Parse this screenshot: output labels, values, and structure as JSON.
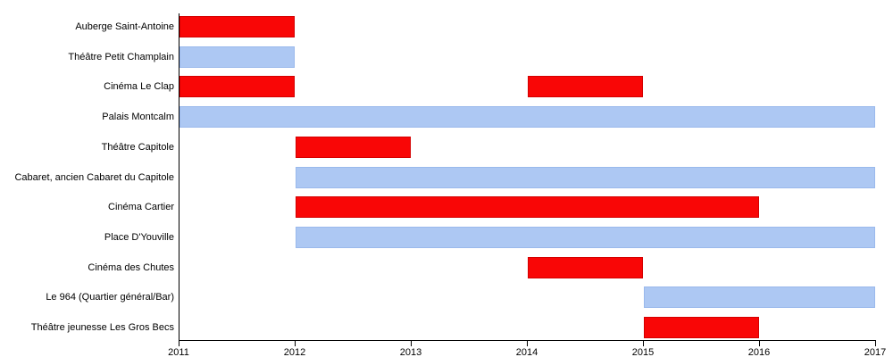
{
  "chart_data": {
    "type": "bar",
    "orientation": "horizontal",
    "title": "",
    "xlabel": "",
    "ylabel": "",
    "grid": false,
    "legend": false,
    "xlim": [
      2011,
      2017
    ],
    "x_ticks": [
      "2011",
      "2012",
      "2013",
      "2014",
      "2015",
      "2016",
      "2017"
    ],
    "palette": {
      "red": "#F90606",
      "blue": "#ADC8F3"
    },
    "border_palette": {
      "red": "#d40000",
      "blue": "#9ab9ec"
    },
    "axis_color": "#000000",
    "rows": [
      {
        "label": "Auberge Saint-Antoine",
        "segments": [
          {
            "start": 2011,
            "end": 2012,
            "color": "red"
          }
        ]
      },
      {
        "label": "Théâtre Petit Champlain",
        "segments": [
          {
            "start": 2011,
            "end": 2012,
            "color": "blue"
          }
        ]
      },
      {
        "label": "Cinéma Le Clap",
        "segments": [
          {
            "start": 2011,
            "end": 2012,
            "color": "red"
          },
          {
            "start": 2014,
            "end": 2015,
            "color": "red"
          }
        ]
      },
      {
        "label": "Palais Montcalm",
        "segments": [
          {
            "start": 2011,
            "end": 2017,
            "color": "blue"
          }
        ]
      },
      {
        "label": "Théâtre Capitole",
        "segments": [
          {
            "start": 2012,
            "end": 2013,
            "color": "red"
          }
        ]
      },
      {
        "label": "Cabaret, ancien Cabaret du Capitole",
        "segments": [
          {
            "start": 2012,
            "end": 2017,
            "color": "blue"
          }
        ]
      },
      {
        "label": "Cinéma Cartier",
        "segments": [
          {
            "start": 2012,
            "end": 2016,
            "color": "red"
          }
        ]
      },
      {
        "label": "Place D'Youville",
        "segments": [
          {
            "start": 2012,
            "end": 2017,
            "color": "blue"
          }
        ]
      },
      {
        "label": "Cinéma des Chutes",
        "segments": [
          {
            "start": 2014,
            "end": 2015,
            "color": "red"
          }
        ]
      },
      {
        "label": "Le 964 (Quartier général/Bar)",
        "segments": [
          {
            "start": 2015,
            "end": 2017,
            "color": "blue"
          }
        ]
      },
      {
        "label": "Théâtre jeunesse Les Gros Becs",
        "segments": [
          {
            "start": 2015,
            "end": 2016,
            "color": "red"
          }
        ]
      }
    ]
  }
}
